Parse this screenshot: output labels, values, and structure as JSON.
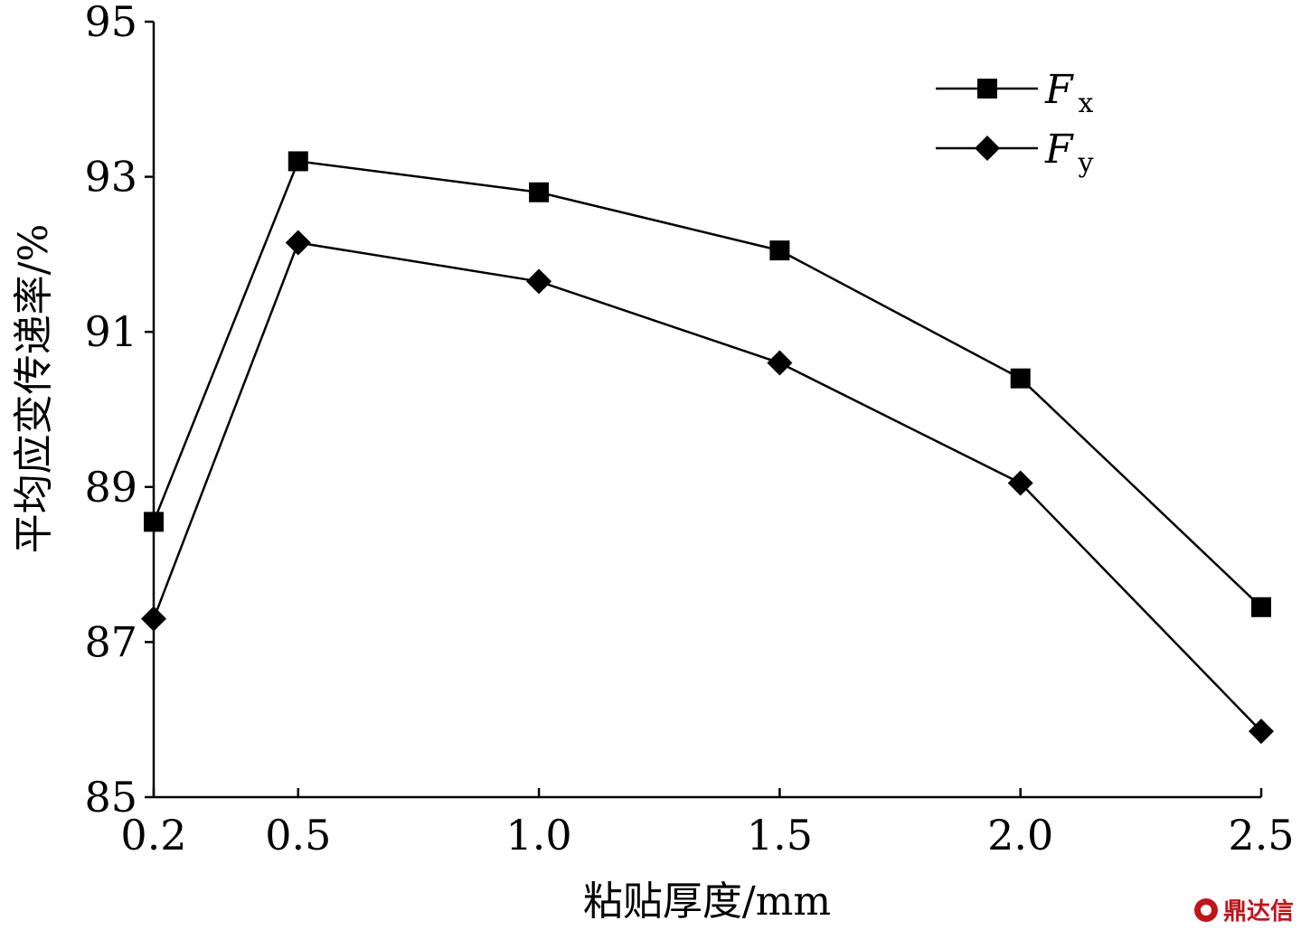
{
  "chart_data": {
    "type": "line",
    "title": "",
    "xlabel": "粘贴厚度/mm",
    "ylabel": "平均应变传递率/%",
    "x": [
      0.2,
      0.5,
      1.0,
      1.5,
      2.0,
      2.5
    ],
    "x_tick_labels": [
      "0.2",
      "0.5",
      "1.0",
      "1.5",
      "2.0",
      "2.5"
    ],
    "y_ticks": [
      85,
      87,
      89,
      91,
      93,
      95
    ],
    "ylim": [
      85,
      95
    ],
    "grid": false,
    "legend_position": "top-right",
    "series": [
      {
        "name": "F",
        "subscript": "x",
        "marker": "square",
        "values": [
          88.55,
          93.2,
          92.8,
          92.05,
          90.4,
          87.45
        ]
      },
      {
        "name": "F",
        "subscript": "y",
        "marker": "diamond",
        "values": [
          87.3,
          92.15,
          91.65,
          90.6,
          89.05,
          85.85
        ]
      }
    ],
    "line_color": "#000000"
  },
  "watermark": {
    "text": "鼎达信"
  }
}
